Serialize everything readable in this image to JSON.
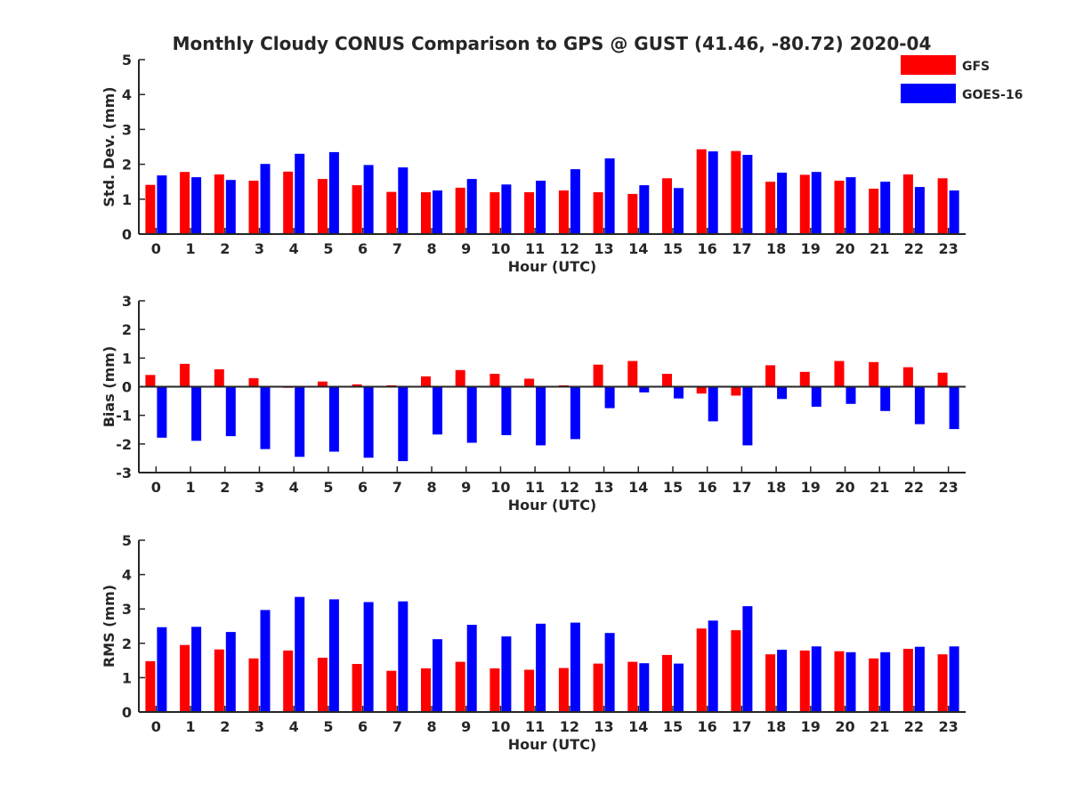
{
  "chart_data": {
    "type": "bar",
    "title": "Monthly Cloudy CONUS Comparison to GPS @ GUST (41.46, -80.72) 2020-04",
    "colors": {
      "GFS": "#ff0000",
      "GOES-16": "#0000ff",
      "axis": "#262626"
    },
    "legend": {
      "placement": "top-right",
      "entries": [
        "GFS",
        "GOES-16"
      ]
    },
    "grid": false,
    "panels": [
      {
        "ylabel": "Std. Dev. (mm)",
        "xlabel": "Hour (UTC)",
        "ylim": [
          0,
          5
        ],
        "yticks": [
          0,
          1,
          2,
          3,
          4,
          5
        ],
        "zero_line": false,
        "categories": [
          "0",
          "1",
          "2",
          "3",
          "4",
          "5",
          "6",
          "7",
          "8",
          "9",
          "10",
          "11",
          "12",
          "13",
          "14",
          "15",
          "16",
          "17",
          "18",
          "19",
          "20",
          "21",
          "22",
          "23"
        ],
        "series": [
          {
            "name": "GFS",
            "values": [
              1.41,
              1.78,
              1.71,
              1.53,
              1.79,
              1.58,
              1.4,
              1.21,
              1.2,
              1.33,
              1.2,
              1.2,
              1.25,
              1.2,
              1.15,
              1.6,
              2.43,
              2.38,
              1.5,
              1.7,
              1.53,
              1.3,
              1.71,
              1.6
            ]
          },
          {
            "name": "GOES-16",
            "values": [
              1.68,
              1.63,
              1.55,
              2.01,
              2.3,
              2.35,
              1.98,
              1.91,
              1.25,
              1.58,
              1.42,
              1.53,
              1.86,
              2.17,
              1.4,
              1.32,
              2.37,
              2.27,
              1.76,
              1.78,
              1.63,
              1.5,
              1.35,
              1.25
            ]
          }
        ]
      },
      {
        "ylabel": "Bias (mm)",
        "xlabel": "Hour (UTC)",
        "ylim": [
          -3,
          3
        ],
        "yticks": [
          -3,
          -2,
          -1,
          0,
          1,
          2,
          3
        ],
        "zero_line": true,
        "categories": [
          "0",
          "1",
          "2",
          "3",
          "4",
          "5",
          "6",
          "7",
          "8",
          "9",
          "10",
          "11",
          "12",
          "13",
          "14",
          "15",
          "16",
          "17",
          "18",
          "19",
          "20",
          "21",
          "22",
          "23"
        ],
        "series": [
          {
            "name": "GFS",
            "values": [
              0.41,
              0.8,
              0.61,
              0.3,
              -0.04,
              0.18,
              0.08,
              0.05,
              0.36,
              0.58,
              0.45,
              0.28,
              0.05,
              0.77,
              0.9,
              0.45,
              -0.24,
              -0.31,
              0.75,
              0.52,
              0.9,
              0.86,
              0.68,
              0.49
            ]
          },
          {
            "name": "GOES-16",
            "values": [
              -1.78,
              -1.89,
              -1.73,
              -2.18,
              -2.45,
              -2.27,
              -2.48,
              -2.6,
              -1.67,
              -1.96,
              -1.69,
              -2.05,
              -1.83,
              -0.75,
              -0.2,
              -0.41,
              -1.21,
              -2.05,
              -0.43,
              -0.7,
              -0.6,
              -0.85,
              -1.31,
              -1.48
            ]
          }
        ]
      },
      {
        "ylabel": "RMS (mm)",
        "xlabel": "Hour (UTC)",
        "ylim": [
          0,
          5
        ],
        "yticks": [
          0,
          1,
          2,
          3,
          4,
          5
        ],
        "zero_line": false,
        "categories": [
          "0",
          "1",
          "2",
          "3",
          "4",
          "5",
          "6",
          "7",
          "8",
          "9",
          "10",
          "11",
          "12",
          "13",
          "14",
          "15",
          "16",
          "17",
          "18",
          "19",
          "20",
          "21",
          "22",
          "23"
        ],
        "series": [
          {
            "name": "GFS",
            "values": [
              1.48,
              1.95,
              1.82,
              1.56,
              1.79,
              1.58,
              1.4,
              1.2,
              1.27,
              1.46,
              1.27,
              1.23,
              1.28,
              1.41,
              1.46,
              1.66,
              2.43,
              2.38,
              1.68,
              1.79,
              1.77,
              1.56,
              1.84,
              1.68
            ]
          },
          {
            "name": "GOES-16",
            "values": [
              2.47,
              2.48,
              2.33,
              2.97,
              3.35,
              3.28,
              3.2,
              3.22,
              2.12,
              2.54,
              2.2,
              2.57,
              2.6,
              2.3,
              1.42,
              1.41,
              2.66,
              3.08,
              1.81,
              1.91,
              1.74,
              1.74,
              1.9,
              1.91
            ]
          }
        ]
      }
    ]
  }
}
